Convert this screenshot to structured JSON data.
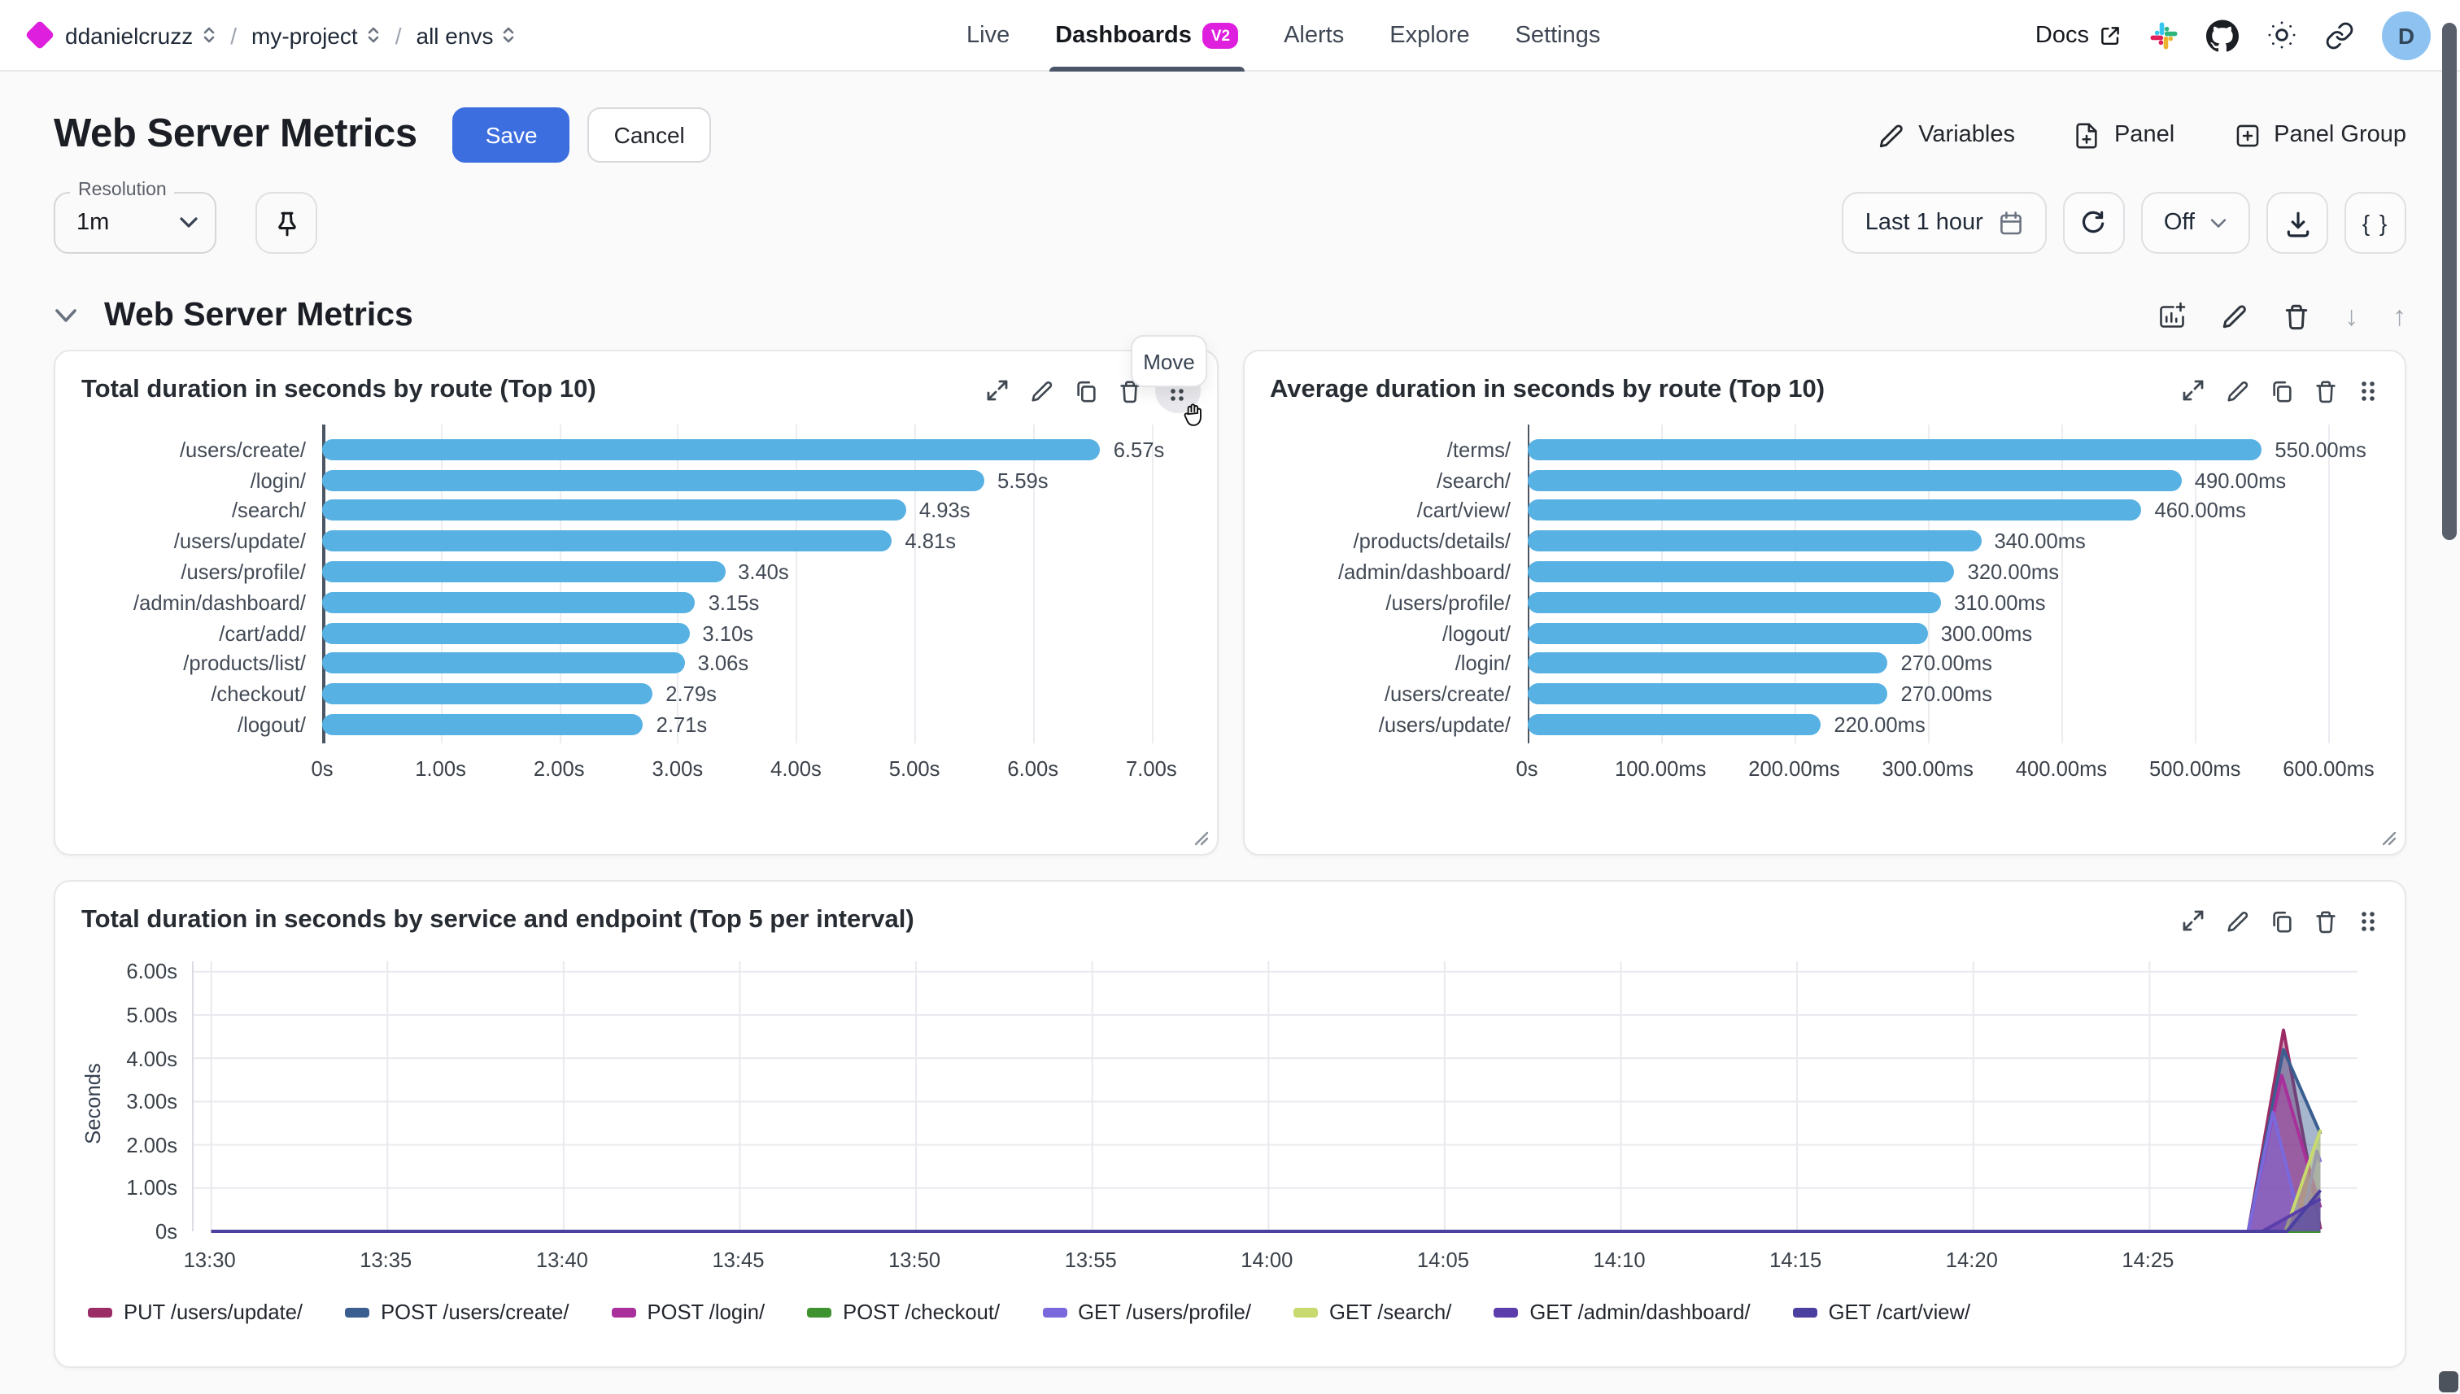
{
  "topbar": {
    "breadcrumb": {
      "org": "ddanielcruzz",
      "project": "my-project",
      "env": "all envs",
      "separator": "/"
    },
    "nav": [
      {
        "label": "Live"
      },
      {
        "label": "Dashboards",
        "badge": "V2"
      },
      {
        "label": "Alerts"
      },
      {
        "label": "Explore"
      },
      {
        "label": "Settings"
      }
    ],
    "docs_label": "Docs",
    "avatar_letter": "D"
  },
  "header": {
    "title": "Web Server Metrics",
    "save": "Save",
    "cancel": "Cancel",
    "variables": "Variables",
    "panel": "Panel",
    "panel_group": "Panel Group"
  },
  "toolbar": {
    "resolution_label": "Resolution",
    "resolution_value": "1m",
    "time_range": "Last 1 hour",
    "auto_refresh": "Off",
    "braces": "{ }"
  },
  "section": {
    "title": "Web Server Metrics",
    "move_tooltip": "Move"
  },
  "panels": [
    {
      "title": "Total duration in seconds by route (Top 10)",
      "chart_data": {
        "type": "bar",
        "orientation": "horizontal",
        "bar_color": "#57b1e3",
        "axis_max": 7.3,
        "categories": [
          "/users/create/",
          "/login/",
          "/search/",
          "/users/update/",
          "/users/profile/",
          "/admin/dashboard/",
          "/cart/add/",
          "/products/list/",
          "/checkout/",
          "/logout/"
        ],
        "values": [
          6.57,
          5.59,
          4.93,
          4.81,
          3.4,
          3.15,
          3.1,
          3.06,
          2.79,
          2.71
        ],
        "value_labels": [
          "6.57s",
          "5.59s",
          "4.93s",
          "4.81s",
          "3.40s",
          "3.15s",
          "3.10s",
          "3.06s",
          "2.79s",
          "2.71s"
        ],
        "xticks": {
          "values": [
            0,
            1,
            2,
            3,
            4,
            5,
            6,
            7
          ],
          "labels": [
            "0s",
            "1.00s",
            "2.00s",
            "3.00s",
            "4.00s",
            "5.00s",
            "6.00s",
            "7.00s"
          ]
        }
      }
    },
    {
      "title": "Average duration in seconds by route (Top 10)",
      "chart_data": {
        "type": "bar",
        "orientation": "horizontal",
        "bar_color": "#57b1e3",
        "axis_max": 635,
        "categories": [
          "/terms/",
          "/search/",
          "/cart/view/",
          "/products/details/",
          "/admin/dashboard/",
          "/users/profile/",
          "/logout/",
          "/login/",
          "/users/create/",
          "/users/update/"
        ],
        "values": [
          550,
          490,
          460,
          340,
          320,
          310,
          300,
          270,
          270,
          220
        ],
        "value_labels": [
          "550.00ms",
          "490.00ms",
          "460.00ms",
          "340.00ms",
          "320.00ms",
          "310.00ms",
          "300.00ms",
          "270.00ms",
          "270.00ms",
          "220.00ms"
        ],
        "xticks": {
          "values": [
            0,
            100,
            200,
            300,
            400,
            500,
            600
          ],
          "labels": [
            "0s",
            "100.00ms",
            "200.00ms",
            "300.00ms",
            "400.00ms",
            "500.00ms",
            "600.00ms"
          ]
        }
      }
    },
    {
      "title": "Total duration in seconds by service and endpoint (Top 5 per interval)",
      "chart_data": {
        "type": "area",
        "ylabel": "Seconds",
        "ylim": [
          0,
          6.24
        ],
        "yticks": {
          "values": [
            0,
            1,
            2,
            3,
            4,
            5,
            6
          ],
          "labels": [
            "0s",
            "1.00s",
            "2.00s",
            "3.00s",
            "4.00s",
            "5.00s",
            "6.00s"
          ]
        },
        "xticks": {
          "minutes": [
            0,
            5,
            10,
            15,
            20,
            25,
            30,
            35,
            40,
            45,
            50,
            55
          ],
          "labels": [
            "13:30",
            "13:35",
            "13:40",
            "13:45",
            "13:50",
            "13:55",
            "14:00",
            "14:05",
            "14:10",
            "14:15",
            "14:20",
            "14:25"
          ]
        },
        "xlim_minutes": [
          -0.5,
          60.9
        ],
        "legend_position": "bottom",
        "grid": true,
        "series": [
          {
            "name": "PUT /users/update/",
            "color": "#9b2d66",
            "points": [
              [
                0,
                0
              ],
              [
                57.8,
                0
              ],
              [
                58.8,
                4.65
              ],
              [
                59.85,
                0.05
              ]
            ]
          },
          {
            "name": "POST /users/create/",
            "color": "#3a5e90",
            "points": [
              [
                0,
                0
              ],
              [
                57.8,
                0
              ],
              [
                58.8,
                4.2
              ],
              [
                59.85,
                2.25
              ]
            ]
          },
          {
            "name": "POST /login/",
            "color": "#a9309b",
            "points": [
              [
                0,
                0
              ],
              [
                57.8,
                0
              ],
              [
                58.75,
                3.6
              ],
              [
                59.85,
                0.55
              ]
            ]
          },
          {
            "name": "POST /checkout/",
            "color": "#3f9230",
            "points": [
              [
                0,
                0
              ],
              [
                59.85,
                0
              ]
            ]
          },
          {
            "name": "GET /users/profile/",
            "color": "#7a68dd",
            "points": [
              [
                0,
                0
              ],
              [
                57.8,
                0
              ],
              [
                58.5,
                2.75
              ],
              [
                59.3,
                0.15
              ],
              [
                59.75,
                1.85
              ],
              [
                59.85,
                1.6
              ]
            ]
          },
          {
            "name": "GET /search/",
            "color": "#c8da6d",
            "points": [
              [
                0,
                0
              ],
              [
                58.85,
                0
              ],
              [
                59.85,
                2.35
              ]
            ]
          },
          {
            "name": "GET /admin/dashboard/",
            "color": "#5b3dab",
            "points": [
              [
                0,
                0
              ],
              [
                58.2,
                0
              ],
              [
                59.85,
                0.75
              ]
            ]
          },
          {
            "name": "GET /cart/view/",
            "color": "#4b3f9f",
            "points": [
              [
                0,
                0
              ],
              [
                58.9,
                0
              ],
              [
                59.85,
                0.95
              ]
            ]
          }
        ]
      }
    }
  ]
}
